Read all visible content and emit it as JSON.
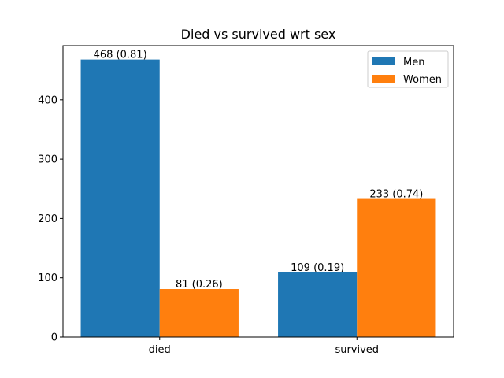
{
  "chart_data": {
    "type": "bar",
    "title": "Died vs survived wrt sex",
    "xlabel": "",
    "ylabel": "",
    "categories": [
      "died",
      "survived"
    ],
    "series": [
      {
        "name": "Men",
        "color": "#1f77b4",
        "values": [
          468,
          109
        ],
        "labels": [
          "468 (0.81)",
          "109 (0.19)"
        ]
      },
      {
        "name": "Women",
        "color": "#ff7f0e",
        "values": [
          81,
          233
        ],
        "labels": [
          "81 (0.26)",
          "233 (0.74)"
        ]
      }
    ],
    "yticks": [
      0,
      100,
      200,
      300,
      400
    ],
    "ylim": [
      0,
      491.4
    ],
    "grid": false,
    "legend_position": "top-right"
  }
}
